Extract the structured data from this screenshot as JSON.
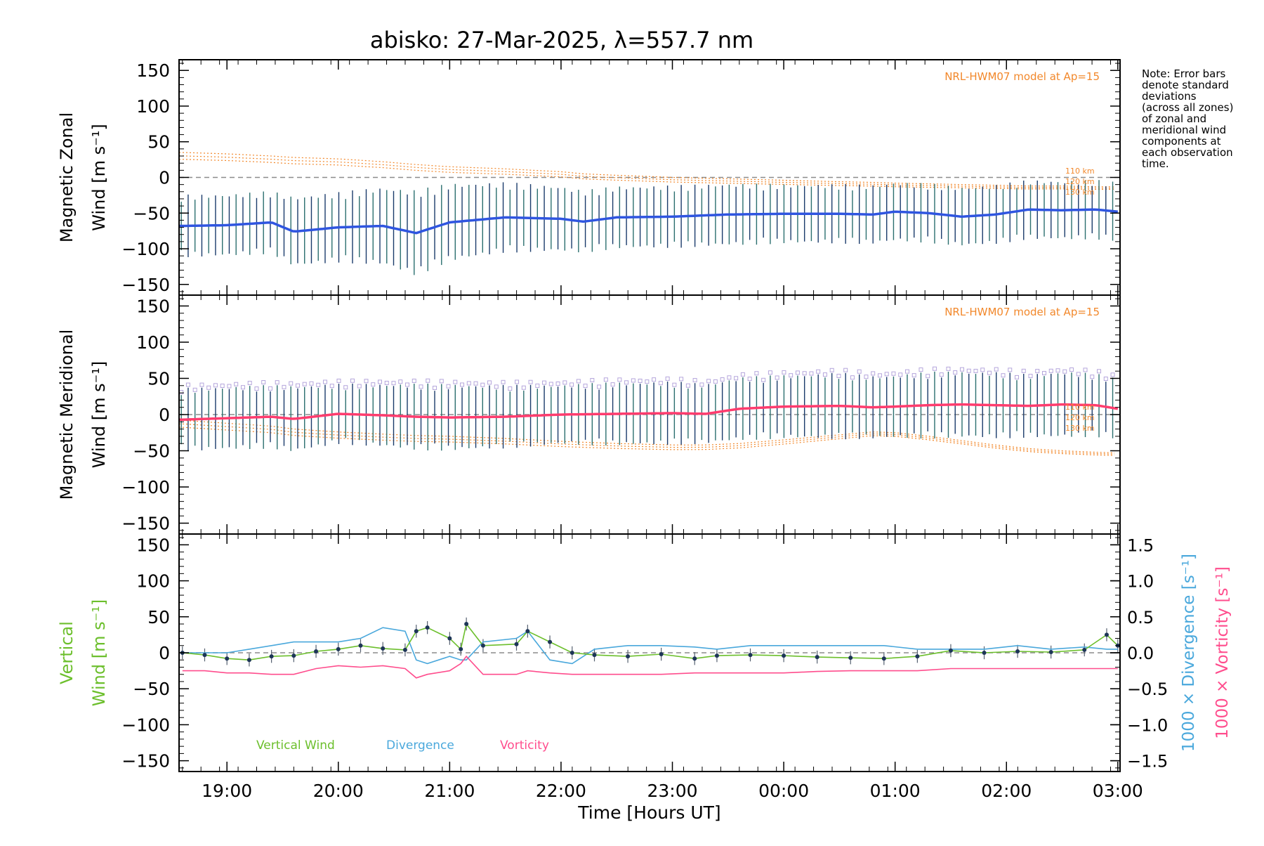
{
  "title": "abisko: 27-Mar-2025, λ=557.7 nm",
  "note_lines": [
    "Note: Error bars",
    "denote standard",
    "deviations",
    "(across all zones)",
    "of zonal and",
    "meridional wind",
    "components at",
    "each observation",
    "time."
  ],
  "colors": {
    "zonal_mean": "#2f55e0",
    "meridional_mean": "#ff3c6e",
    "vertical": "#6cbf2c",
    "divergence": "#4aa8dc",
    "vorticity": "#ff4d8d",
    "model": "#f2882b",
    "error_bar": "#1a3b6b",
    "zero_line": "#8c8c8c"
  },
  "chart_data": [
    {
      "type": "line",
      "panel": "zonal",
      "ylabel_line1": "Magnetic Zonal",
      "ylabel_line2": "Wind [m s⁻¹]",
      "ylim": [
        -165,
        165
      ],
      "yticks": [
        -150,
        -100,
        -50,
        0,
        50,
        100,
        150
      ],
      "model_label": "NRL-HWM07 model at Ap=15",
      "height_labels": [
        "110 km",
        "120 km",
        "130 km"
      ],
      "x_hours": [
        18.6,
        19.0,
        19.4,
        19.6,
        20.0,
        20.4,
        20.7,
        21.0,
        21.5,
        22.0,
        22.2,
        22.5,
        23.0,
        23.5,
        24.0,
        24.5,
        24.8,
        25.0,
        25.3,
        25.6,
        25.9,
        26.2,
        26.5,
        26.8,
        27.0
      ],
      "series": [
        {
          "name": "mean",
          "values": [
            -68,
            -67,
            -63,
            -76,
            -70,
            -68,
            -78,
            -63,
            -56,
            -58,
            -62,
            -56,
            -55,
            -52,
            -51,
            -51,
            -52,
            -48,
            -50,
            -55,
            -52,
            -45,
            -46,
            -45,
            -48
          ]
        },
        {
          "name": "model",
          "values": [
            35,
            33,
            30,
            28,
            26,
            22,
            18,
            15,
            12,
            8,
            5,
            3,
            0,
            -2,
            -4,
            -6,
            -7,
            -8,
            -9,
            -10,
            -11,
            -12,
            -12,
            -13,
            -13
          ]
        }
      ],
      "error_sd": [
        40,
        40,
        40,
        45,
        45,
        50,
        55,
        50,
        45,
        42,
        40,
        40,
        40,
        40,
        38,
        38,
        38,
        38,
        38,
        38,
        38,
        38,
        38,
        38,
        38
      ]
    },
    {
      "type": "line",
      "panel": "meridional",
      "ylabel_line1": "Magnetic Meridional",
      "ylabel_line2": "Wind [m s⁻¹]",
      "ylim": [
        -165,
        165
      ],
      "yticks": [
        -150,
        -100,
        -50,
        0,
        50,
        100,
        150
      ],
      "model_label": "NRL-HWM07 model at Ap=15",
      "height_labels": [
        "110 km",
        "120 km",
        "130 km"
      ],
      "x_hours": [
        18.6,
        19.0,
        19.4,
        19.6,
        20.0,
        20.4,
        20.7,
        21.0,
        21.5,
        22.0,
        22.5,
        23.0,
        23.3,
        23.6,
        24.0,
        24.5,
        24.8,
        25.0,
        25.3,
        25.6,
        25.9,
        26.2,
        26.5,
        26.8,
        27.0
      ],
      "series": [
        {
          "name": "mean",
          "values": [
            -7,
            -5,
            -3,
            -6,
            1,
            -1,
            -3,
            -4,
            -3,
            0,
            1,
            2,
            1,
            8,
            11,
            12,
            10,
            11,
            13,
            14,
            13,
            12,
            14,
            13,
            8
          ]
        },
        {
          "name": "model",
          "values": [
            -8,
            -12,
            -16,
            -20,
            -24,
            -27,
            -29,
            -30,
            -33,
            -37,
            -40,
            -42,
            -42,
            -40,
            -35,
            -28,
            -24,
            -25,
            -30,
            -36,
            -42,
            -47,
            -50,
            -52,
            -53
          ]
        }
      ],
      "error_sd": [
        40,
        40,
        40,
        42,
        38,
        40,
        42,
        42,
        40,
        38,
        40,
        40,
        38,
        40,
        40,
        42,
        40,
        40,
        42,
        42,
        42,
        40,
        42,
        40,
        38
      ]
    },
    {
      "type": "line",
      "panel": "vertical",
      "ylabel_line1": "Vertical",
      "ylabel_line2": "Wind [m s⁻¹]",
      "ylim": [
        -165,
        165
      ],
      "yticks": [
        -150,
        -100,
        -50,
        0,
        50,
        100,
        150
      ],
      "y2lim": [
        -1.65,
        1.65
      ],
      "y2ticks": [
        "1.5",
        "1.0",
        "0.5",
        "0.0",
        "-0.5",
        "-1.0",
        "-1.5"
      ],
      "y2label_divergence": "1000 × Divergence [s⁻¹]",
      "y2label_vorticity": "1000 × Vorticity [s⁻¹]",
      "xlabel": "Time [Hours UT]",
      "xticks": [
        "19:00",
        "20:00",
        "21:00",
        "22:00",
        "23:00",
        "00:00",
        "01:00",
        "02:00",
        "03:00"
      ],
      "xlim_hours": [
        18.57,
        27.02
      ],
      "legend": [
        "Vertical Wind",
        "Divergence",
        "Vorticity"
      ],
      "x_hours": [
        18.6,
        18.8,
        19.0,
        19.2,
        19.4,
        19.6,
        19.8,
        20.0,
        20.2,
        20.4,
        20.6,
        20.7,
        20.8,
        21.0,
        21.1,
        21.15,
        21.3,
        21.6,
        21.7,
        21.9,
        22.1,
        22.3,
        22.6,
        22.9,
        23.2,
        23.4,
        23.7,
        24.0,
        24.3,
        24.6,
        24.9,
        25.2,
        25.5,
        25.8,
        26.1,
        26.4,
        26.7,
        26.9,
        27.0
      ],
      "series": [
        {
          "name": "Vertical Wind",
          "values": [
            0,
            -3,
            -8,
            -10,
            -5,
            -4,
            2,
            5,
            10,
            6,
            4,
            30,
            35,
            20,
            5,
            40,
            10,
            12,
            30,
            15,
            0,
            -3,
            -5,
            -2,
            -8,
            -4,
            -3,
            -4,
            -6,
            -7,
            -8,
            -5,
            3,
            0,
            2,
            1,
            4,
            25,
            10
          ]
        },
        {
          "name": "Divergence",
          "values": [
            0.0,
            0.0,
            0.0,
            0.05,
            0.1,
            0.15,
            0.15,
            0.15,
            0.2,
            0.35,
            0.3,
            -0.1,
            -0.15,
            -0.05,
            -0.1,
            -0.1,
            0.15,
            0.2,
            0.3,
            -0.1,
            -0.15,
            0.05,
            0.1,
            0.1,
            0.08,
            0.05,
            0.1,
            0.1,
            0.1,
            0.1,
            0.1,
            0.05,
            0.05,
            0.05,
            0.1,
            0.05,
            0.08,
            0.05,
            0.05
          ]
        },
        {
          "name": "Vorticity",
          "values": [
            -0.25,
            -0.25,
            -0.28,
            -0.28,
            -0.3,
            -0.3,
            -0.22,
            -0.18,
            -0.2,
            -0.18,
            -0.22,
            -0.35,
            -0.3,
            -0.25,
            -0.15,
            -0.05,
            -0.3,
            -0.3,
            -0.25,
            -0.28,
            -0.3,
            -0.3,
            -0.3,
            -0.3,
            -0.28,
            -0.28,
            -0.28,
            -0.28,
            -0.26,
            -0.25,
            -0.25,
            -0.25,
            -0.22,
            -0.22,
            -0.22,
            -0.22,
            -0.22,
            -0.22,
            -0.22
          ]
        }
      ]
    }
  ]
}
